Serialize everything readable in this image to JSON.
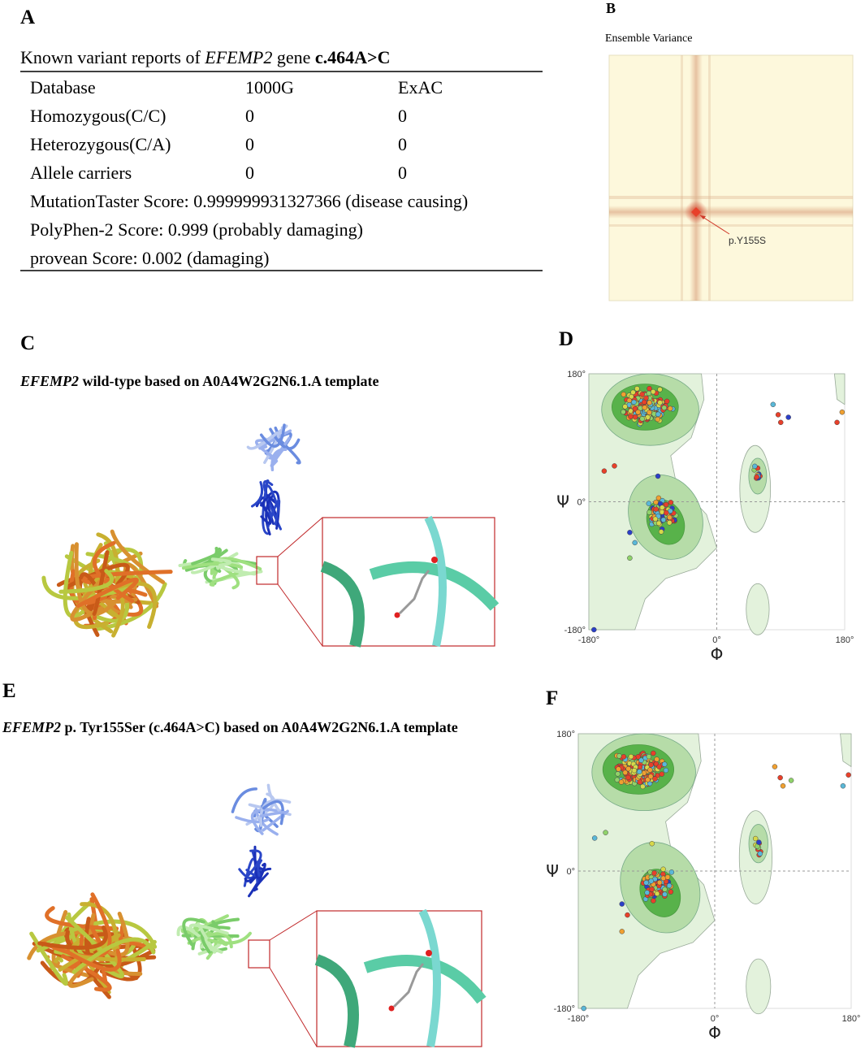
{
  "panel_a": {
    "label": "A",
    "title": {
      "prefix": "Known variant reports of ",
      "gene": "EFEMP2",
      "middle": " gene ",
      "variant": "c.464A>C"
    },
    "table": {
      "header": [
        "Database",
        "1000G",
        "ExAC"
      ],
      "rows": [
        [
          "Homozygous(C/C)",
          "0",
          "0"
        ],
        [
          "Heterozygous(C/A)",
          "0",
          "0"
        ],
        [
          "Allele carriers",
          "0",
          "0"
        ]
      ],
      "notes": [
        "MutationTaster Score: 0.999999931327366 (disease causing)",
        "PolyPhen-2 Score: 0.999 (probably damaging)",
        "provean Score: 0.002 (damaging)"
      ]
    }
  },
  "panel_b": {
    "label": "B",
    "title": "Ensemble Variance",
    "annotation": "p.Y155S"
  },
  "panel_c": {
    "label": "C",
    "title": {
      "gene": "EFEMP2",
      "rest": " wild-type based on A0A4W2G2N6.1.A template"
    }
  },
  "panel_d": {
    "label": "D",
    "y_ticks": [
      "180°",
      "0°",
      "-180°"
    ],
    "x_ticks": [
      "-180°",
      "0°",
      "180°"
    ],
    "x_label": "Φ",
    "y_label": "Ψ"
  },
  "panel_e": {
    "label": "E",
    "title": {
      "gene": "EFEMP2",
      "rest": " p. Tyr155Ser (c.464A>C) based on A0A4W2G2N6.1.A template"
    }
  },
  "panel_f": {
    "label": "F",
    "y_ticks": [
      "180°",
      "0°",
      "-180°"
    ],
    "x_ticks": [
      "-180°",
      "0°",
      "180°"
    ],
    "x_label": "Φ",
    "y_label": "Ψ"
  }
}
